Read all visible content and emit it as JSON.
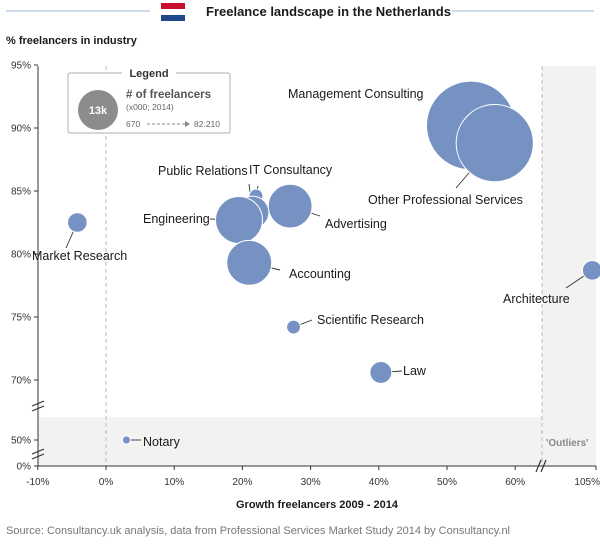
{
  "header": {
    "title": "Freelance landscape in the Netherlands"
  },
  "colors": {
    "bubble": "#7592C3",
    "bubble_stroke": "#FFFFFF",
    "flag_red": "#C8102E",
    "flag_white": "#FFFFFF",
    "flag_blue": "#21468B",
    "outlier_band": "#F2F2F2",
    "legend_bubble": "#8C8C8C"
  },
  "legend": {
    "title": "Legend",
    "bubble_label": "13k",
    "main": "# of freelancers",
    "sub": "(x000; 2014)",
    "range_min": "670",
    "range_max": "82.210"
  },
  "outliers_label": "'Outliers'",
  "source": "Source: Consultancy.uk analysis, data from Professional Services Market Study 2014 by Consultancy.nl",
  "chart_data": {
    "type": "scatter",
    "subtype": "bubble",
    "xlabel": "Growth freelancers 2009 - 2014",
    "ylabel": "% freelancers in industry",
    "xlim": [
      -10,
      105
    ],
    "ylim_main": [
      68,
      95
    ],
    "y_break_values": [
      0,
      50
    ],
    "x_ticks": [
      "-10%",
      "0%",
      "10%",
      "20%",
      "30%",
      "40%",
      "50%",
      "60%",
      "105%"
    ],
    "y_ticks": [
      "95%",
      "90%",
      "85%",
      "80%",
      "75%",
      "70%",
      "50%",
      "0%"
    ],
    "grid": false,
    "legend_position": "top-left",
    "points": [
      {
        "label": "Management Consulting",
        "x": 53.5,
        "y": 90.2,
        "size": 82
      },
      {
        "label": "Other Professional Services",
        "x": 57,
        "y": 88.8,
        "size": 62
      },
      {
        "label": "Advertising",
        "x": 27,
        "y": 83.8,
        "size": 20
      },
      {
        "label": "IT Consultancy",
        "x": 22,
        "y": 84.6,
        "size": 2
      },
      {
        "label": "Public Relations",
        "x": 21.5,
        "y": 83.3,
        "size": 11
      },
      {
        "label": "Engineering",
        "x": 19.5,
        "y": 82.7,
        "size": 23
      },
      {
        "label": "Accounting",
        "x": 21,
        "y": 79.3,
        "size": 21
      },
      {
        "label": "Market Research",
        "x": -4.2,
        "y": 82.5,
        "size": 4
      },
      {
        "label": "Scientific Research",
        "x": 27.5,
        "y": 74.2,
        "size": 2
      },
      {
        "label": "Law",
        "x": 40.3,
        "y": 70.6,
        "size": 5
      },
      {
        "label": "Architecture",
        "x": 102,
        "y": 78.7,
        "size": 4
      },
      {
        "label": "Notary",
        "x": 3,
        "y": 50,
        "size": 0.7
      }
    ]
  }
}
